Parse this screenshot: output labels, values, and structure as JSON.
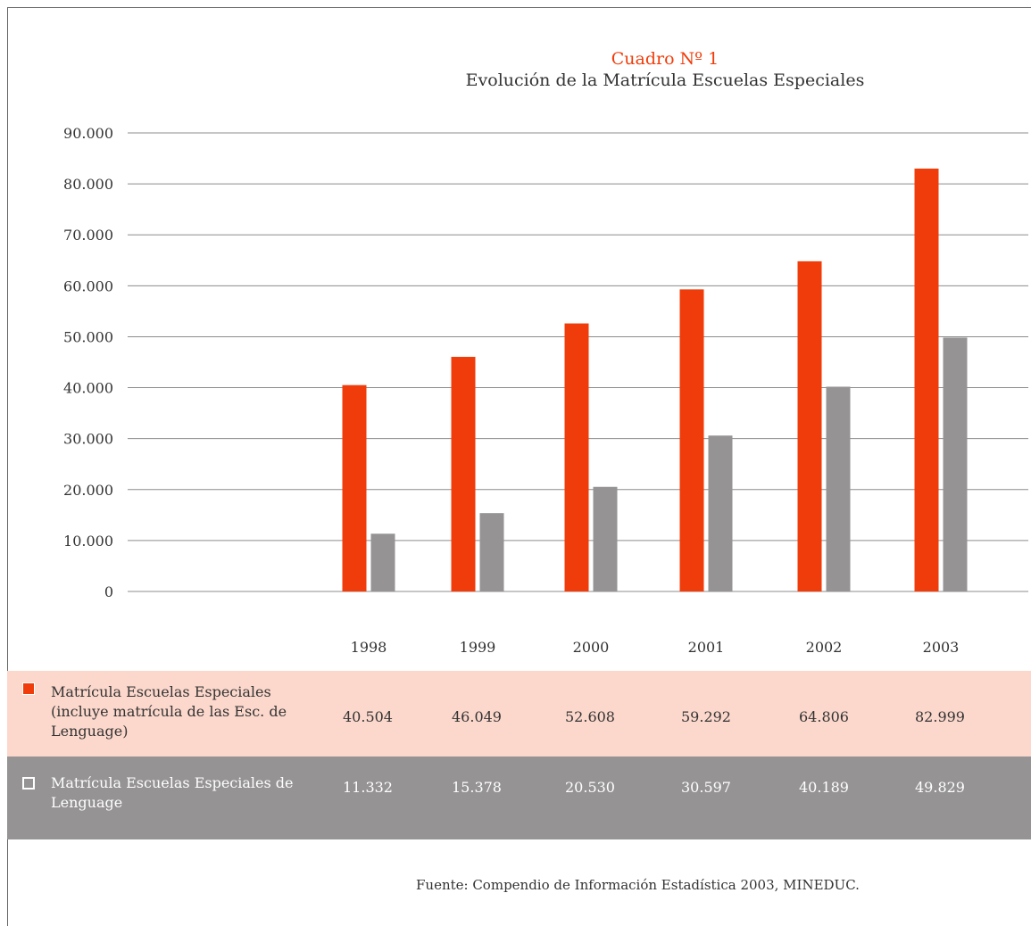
{
  "chart_data": {
    "type": "bar",
    "title": "Cuadro Nº 1",
    "subtitle": "Evolución de la Matrícula Escuelas Especiales",
    "categories": [
      "1998",
      "1999",
      "2000",
      "2001",
      "2002",
      "2003"
    ],
    "ylim": [
      0,
      90000
    ],
    "yticks": [
      "90.000",
      "80.000",
      "70.000",
      "60.000",
      "50.000",
      "40.000",
      "30.000",
      "20.000",
      "10.000",
      "0"
    ],
    "ytick_values": [
      90000,
      80000,
      70000,
      60000,
      50000,
      40000,
      30000,
      20000,
      10000,
      0
    ],
    "grid": true,
    "series": [
      {
        "name": "Matrícula Escuelas Especiales (incluye matrícula de las Esc. de Lenguage)",
        "color": "#f03c0a",
        "values": [
          40504,
          46049,
          52608,
          59292,
          64806,
          82999
        ],
        "labels": [
          "40.504",
          "46.049",
          "52.608",
          "59.292",
          "64.806",
          "82.999"
        ]
      },
      {
        "name": "Matrícula Escuelas Especiales de Lenguage",
        "color": "#959393",
        "values": [
          11332,
          15378,
          20530,
          30597,
          40189,
          49829
        ],
        "labels": [
          "11.332",
          "15.378",
          "20.530",
          "30.597",
          "40.189",
          "49.829"
        ]
      }
    ]
  },
  "title": {
    "line1": "Cuadro Nº 1",
    "line2": "Evolución de la Matrícula Escuelas Especiales"
  },
  "legend_table": {
    "row1_label": "Matrícula Escuelas Especiales (incluye matrícula de las Esc. de Lenguage)",
    "row2_label": "Matrícula Escuelas Especiales de Lenguage",
    "row1_values": [
      "40.504",
      "46.049",
      "52.608",
      "59.292",
      "64.806",
      "82.999"
    ],
    "row2_values": [
      "11.332",
      "15.378",
      "20.530",
      "30.597",
      "40.189",
      "49.829"
    ]
  },
  "source": "Fuente: Compendio de Información Estadística 2003, MINEDUC.",
  "colors": {
    "accent": "#f03c0a",
    "secondary": "#959393",
    "row1_bg": "#fcd8cc"
  }
}
